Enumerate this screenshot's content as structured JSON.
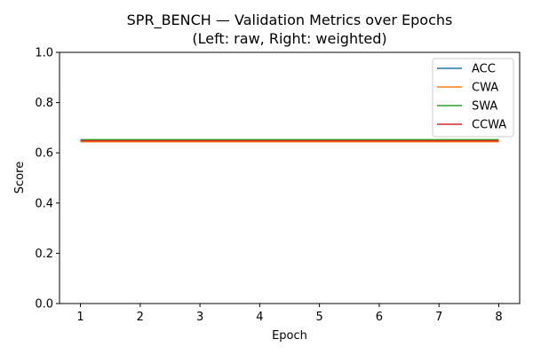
{
  "chart_data": {
    "type": "line",
    "title": "SPR_BENCH — Validation Metrics over Epochs",
    "subtitle": "(Left: raw, Right: weighted)",
    "xlabel": "Epoch",
    "ylabel": "Score",
    "x": [
      1,
      2,
      3,
      4,
      5,
      6,
      7,
      8
    ],
    "xlim": [
      0.65,
      8.35
    ],
    "ylim": [
      0.0,
      1.0
    ],
    "xticks": [
      "1",
      "2",
      "3",
      "4",
      "5",
      "6",
      "7",
      "8"
    ],
    "yticks": [
      "0.0",
      "0.2",
      "0.4",
      "0.6",
      "0.8",
      "1.0"
    ],
    "grid": false,
    "legend_position": "top-right",
    "series": [
      {
        "name": "ACC",
        "color": "#1f77b4",
        "values": [
          0.65,
          0.65,
          0.65,
          0.65,
          0.65,
          0.65,
          0.65,
          0.65
        ]
      },
      {
        "name": "CWA",
        "color": "#ff7f0e",
        "values": [
          0.644,
          0.644,
          0.644,
          0.644,
          0.644,
          0.644,
          0.644,
          0.644
        ]
      },
      {
        "name": "SWA",
        "color": "#2ca02c",
        "values": [
          0.652,
          0.652,
          0.652,
          0.652,
          0.652,
          0.652,
          0.652,
          0.652
        ]
      },
      {
        "name": "CCWA",
        "color": "#d62728",
        "values": [
          0.648,
          0.648,
          0.648,
          0.648,
          0.648,
          0.648,
          0.648,
          0.648
        ]
      }
    ]
  }
}
